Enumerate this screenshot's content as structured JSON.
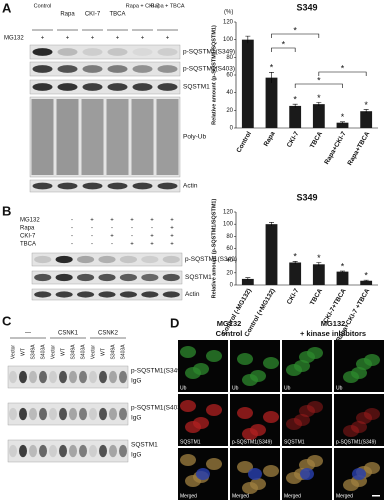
{
  "panel_labels": [
    "A",
    "B",
    "C",
    "D"
  ],
  "panel_a": {
    "treatment": "MG132",
    "lanes": [
      "Control",
      "Rapa",
      "CKI-7",
      "TBCA",
      "Rapa + CKI-7",
      "Rapa + TBCA"
    ],
    "signs": [
      "+",
      "+",
      "+",
      "+",
      "+",
      "+"
    ],
    "blots": [
      "p-SQSTM1(S349)",
      "p-SQSTM1(S403)",
      "SQSTM1",
      "Poly-Ub",
      "Actin"
    ]
  },
  "panel_b": {
    "rows": [
      {
        "name": "MG132",
        "signs": [
          "-",
          "+",
          "+",
          "+",
          "+",
          "+"
        ]
      },
      {
        "name": "Rapa",
        "signs": [
          "-",
          "-",
          "-",
          "-",
          "-",
          "+"
        ]
      },
      {
        "name": "CKI-7",
        "signs": [
          "-",
          "-",
          "+",
          "-",
          "+",
          "+"
        ]
      },
      {
        "name": "TBCA",
        "signs": [
          "-",
          "-",
          "-",
          "+",
          "+",
          "+"
        ]
      }
    ],
    "blots": [
      "p-SQSTM1(S349)",
      "SQSTM1",
      "Actin"
    ]
  },
  "panel_c": {
    "groups": [
      "—",
      "CSNK1",
      "CSNK2"
    ],
    "lanes": [
      "Vector",
      "WT",
      "S349A",
      "S403A",
      "Vector",
      "WT",
      "S349A",
      "S403A",
      "Vector",
      "WT",
      "S349A",
      "S403A"
    ],
    "blots": [
      {
        "name": "p-SQSTM1(S349)",
        "igg": "IgG"
      },
      {
        "name": "p-SQSTM1(S403)",
        "igg": "IgG"
      },
      {
        "name": "SQSTM1",
        "igg": "IgG"
      }
    ]
  },
  "panel_d": {
    "columns": [
      {
        "title": "MG132",
        "subtitle": "Control"
      },
      {
        "title": "MG132",
        "subtitle": "+ kinase inhibitors"
      }
    ],
    "rows": [
      [
        "Ub",
        "Ub",
        "Ub",
        "Ub"
      ],
      [
        "SQSTM1",
        "p-SQSTM1(S349)",
        "SQSTM1",
        "p-SQSTM1(S349)"
      ],
      [
        "Merged",
        "Merged",
        "Merged",
        "Merged"
      ]
    ]
  },
  "chart_data": [
    {
      "type": "bar",
      "title": "S349",
      "y_label": "Relative amount (p-SQSTM1/SQSTM1)",
      "unit": "(%)",
      "color": "#1a1a1a",
      "categories": [
        "Control",
        "Rapa",
        "CKI-7",
        "TBCA",
        "Rapa+CKI-7",
        "Rapa+TBCA"
      ],
      "values": [
        100,
        57,
        25,
        27,
        6,
        19
      ],
      "errors": [
        4,
        6,
        2,
        2,
        1,
        2
      ],
      "significance": [
        null,
        "*",
        "*",
        "*",
        "*",
        "*"
      ],
      "brackets": [
        {
          "pair": [
            1,
            2
          ],
          "label": "*"
        },
        {
          "pair": [
            1,
            3
          ],
          "label": "*"
        },
        {
          "pair": [
            3,
            5
          ],
          "label": "*"
        },
        {
          "pair": [
            2,
            4
          ],
          "label": "*"
        }
      ],
      "ylim": [
        0,
        120
      ],
      "yticks": [
        0,
        20,
        40,
        60,
        80,
        100,
        120
      ]
    },
    {
      "type": "bar",
      "title": "S349",
      "y_label": "Relative amount (p-SQSTM1/SQSTM1)",
      "color": "#1a1a1a",
      "categories": [
        "Control (-MG132)",
        "Control (+MG132)",
        "CKI-7",
        "TBCA",
        "CKI-7+TBCA",
        "Rapa+CKI-7 +TBCA"
      ],
      "values": [
        10,
        100,
        37,
        34,
        22,
        7
      ],
      "errors": [
        2,
        3,
        2,
        3,
        1,
        1
      ],
      "significance": [
        null,
        null,
        "*",
        "*",
        "*",
        "*"
      ],
      "ylim": [
        0,
        120
      ],
      "yticks": [
        0,
        20,
        40,
        60,
        80,
        100,
        120
      ]
    }
  ]
}
